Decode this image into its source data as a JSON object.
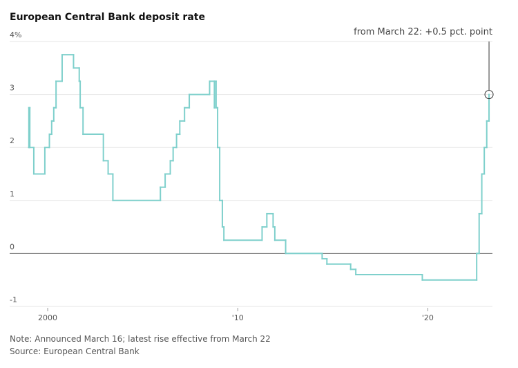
{
  "chart_data": {
    "type": "line",
    "step": "post",
    "title": "European Central Bank deposit rate",
    "annotation": "from March 22: +0.5 pct. point",
    "note": "Note: Announced March 16; latest rise effective from March 22",
    "source": "Source: European Central Bank",
    "color": "#7fd0cc",
    "grid": true,
    "xlim": [
      1998,
      2023.4
    ],
    "xticks": [
      2000,
      {
        "value": 2010,
        "label": "'10"
      },
      {
        "value": 2020,
        "label": "'20"
      }
    ],
    "ylim": [
      -1,
      4
    ],
    "yticks": [
      -1,
      0,
      1,
      2,
      3,
      {
        "value": 4,
        "label": "4%"
      }
    ],
    "x": [
      1999.0,
      1999.01,
      1999.06,
      1999.27,
      1999.85,
      2000.09,
      2000.21,
      2000.32,
      2000.44,
      2000.76,
      2001.36,
      2001.66,
      2001.71,
      2001.86,
      2002.93,
      2003.18,
      2003.43,
      2005.93,
      2006.18,
      2006.45,
      2006.6,
      2006.78,
      2006.95,
      2007.2,
      2007.45,
      2008.52,
      2008.77,
      2008.78,
      2008.86,
      2008.94,
      2009.05,
      2009.19,
      2009.27,
      2011.28,
      2011.53,
      2011.86,
      2011.95,
      2012.52,
      2014.44,
      2014.69,
      2015.94,
      2016.21,
      2019.71,
      2022.57,
      2022.7,
      2022.84,
      2022.97,
      2023.1,
      2023.22
    ],
    "values": [
      2.0,
      2.75,
      2.0,
      1.5,
      2.0,
      2.25,
      2.5,
      2.75,
      3.25,
      3.75,
      3.5,
      3.25,
      2.75,
      2.25,
      1.75,
      1.5,
      1.0,
      1.25,
      1.5,
      1.75,
      2.0,
      2.25,
      2.5,
      2.75,
      3.0,
      3.25,
      2.75,
      3.25,
      2.75,
      2.0,
      1.0,
      0.5,
      0.25,
      0.5,
      0.75,
      0.5,
      0.25,
      0.0,
      -0.1,
      -0.2,
      -0.3,
      -0.4,
      -0.5,
      0.0,
      0.75,
      1.5,
      2.0,
      2.5,
      3.0
    ]
  }
}
